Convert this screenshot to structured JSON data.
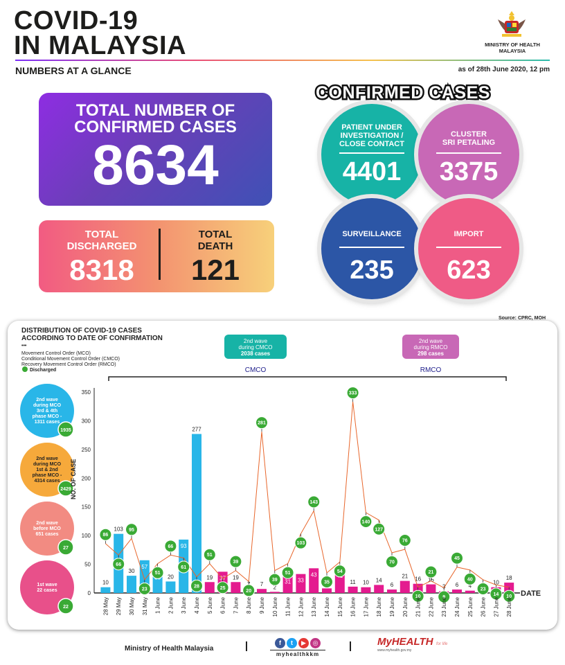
{
  "header": {
    "title_line1": "COVID-19",
    "title_line2": "IN MALAYSIA",
    "subtitle": "NUMBERS AT A GLANCE",
    "ministry_line1": "MINISTRY OF HEALTH",
    "ministry_line2": "MALAYSIA",
    "as_of": "as of 28th June 2020, 12 pm"
  },
  "total": {
    "label_line1": "TOTAL NUMBER OF",
    "label_line2": "CONFIRMED CASES",
    "value": "8634"
  },
  "discharged": {
    "label_line1": "TOTAL",
    "label_line2": "DISCHARGED",
    "value": "8318"
  },
  "death": {
    "label_line1": "TOTAL",
    "label_line2": "DEATH",
    "value": "121"
  },
  "confirmed_cases": {
    "title": "CONFIRMED CASES",
    "pui": {
      "label_line1": "PATIENT UNDER",
      "label_line2": "INVESTIGATION /",
      "label_line3": "CLOSE CONTACT",
      "value": "4401",
      "color": "#17b3a6"
    },
    "cluster": {
      "label_line1": "CLUSTER",
      "label_line2": "SRI PETALING",
      "value": "3375",
      "color": "#c868b6"
    },
    "surveillance": {
      "label": "SURVEILLANCE",
      "value": "235",
      "color": "#2c56a6"
    },
    "import": {
      "label": "IMPORT",
      "value": "623",
      "color": "#ef5b86"
    }
  },
  "source": "Source: CPRC, MOH",
  "chart_panel": {
    "title_line1": "DISTRIBUTION OF COVID-19 CASES",
    "title_line2": "ACCORDING TO DATE OF CONFIRMATION",
    "dots": "•••",
    "legend_mco": "Movement Control Order (MCO)",
    "legend_cmco": "Conditional Movement Control Order (CMCO)",
    "legend_rmco": "Recovery Movement Control Order (RMCO)",
    "legend_discharged": "Discharged",
    "cmco_box": {
      "line1": "2nd wave",
      "line2": "during CMCO",
      "line3": "2038 cases",
      "color": "#17b3a6"
    },
    "rmco_box": {
      "line1": "2nd wave",
      "line2": "during RMCO",
      "line3": "298 cases",
      "color": "#c868b6"
    },
    "cmco_label": "CMCO",
    "rmco_label": "RMCO",
    "waves": [
      {
        "line1": "2nd wave",
        "line2": "during MCO",
        "line3": "3rd & 4th",
        "line4": "phase MCO -",
        "line5": "1311 cases",
        "discharged": "1935",
        "color": "#29b6e8"
      },
      {
        "line1": "2nd wave",
        "line2": "during MCO",
        "line3": "1st & 2nd",
        "line4": "phase MCO -",
        "line5": "4314 cases",
        "discharged": "2429",
        "color": "#f6a93b"
      },
      {
        "line1": "2nd wave",
        "line2": "before MCO",
        "line3": "651 cases",
        "line4": "",
        "line5": "",
        "discharged": "27",
        "color": "#f28b82"
      },
      {
        "line1": "1st wave",
        "line2": "22 cases",
        "line3": "",
        "line4": "",
        "line5": "",
        "discharged": "22",
        "color": "#e8508a"
      }
    ]
  },
  "chart_data": {
    "type": "bar",
    "ylabel": "NO. OF CASE",
    "xlabel": "DATE",
    "ylim": [
      0,
      350
    ],
    "yticks": [
      0,
      50,
      100,
      150,
      200,
      250,
      300,
      350
    ],
    "categories": [
      "28 May",
      "29 May",
      "30 May",
      "31 May",
      "1 June",
      "2 June",
      "3 June",
      "4 June",
      "5 June",
      "6 June",
      "7 June",
      "8 June",
      "9 June",
      "10 June",
      "11 June",
      "12 June",
      "13 June",
      "14 June",
      "15 June",
      "16 June",
      "17 June",
      "18 June",
      "19 June",
      "20 June",
      "21 June",
      "22 June",
      "23 June",
      "24 June",
      "25 June",
      "26 June",
      "27 June",
      "28 June"
    ],
    "series": [
      {
        "values": [
          10,
          103,
          30,
          57,
          38,
          20,
          93,
          277,
          19,
          37,
          19,
          7,
          7,
          2,
          31,
          33,
          43,
          8,
          41,
          11,
          10,
          14,
          6,
          21,
          16,
          15,
          3,
          6,
          4,
          6,
          10,
          18
        ]
      },
      {
        "name": "Discharged",
        "values": [
          86,
          66,
          95,
          23,
          51,
          66,
          61,
          28,
          51,
          25,
          39,
          20,
          281,
          39,
          51,
          103,
          143,
          35,
          54,
          333,
          140,
          127,
          70,
          76,
          10,
          21,
          9,
          45,
          40,
          23,
          14,
          10
        ]
      }
    ],
    "bar_colors": {
      "mco": "#29b6e8",
      "cmco": "#e41b8f",
      "rmco": "#e41b8f"
    },
    "discharged_color": "#3aaa35",
    "line_color": "#e8662b"
  },
  "footer": {
    "ministry": "Ministry of Health Malaysia",
    "handle": "myhealthkkm",
    "brand": "MyHEALTH",
    "brand_tag": "for life",
    "url": "www.myhealth.gov.my"
  }
}
